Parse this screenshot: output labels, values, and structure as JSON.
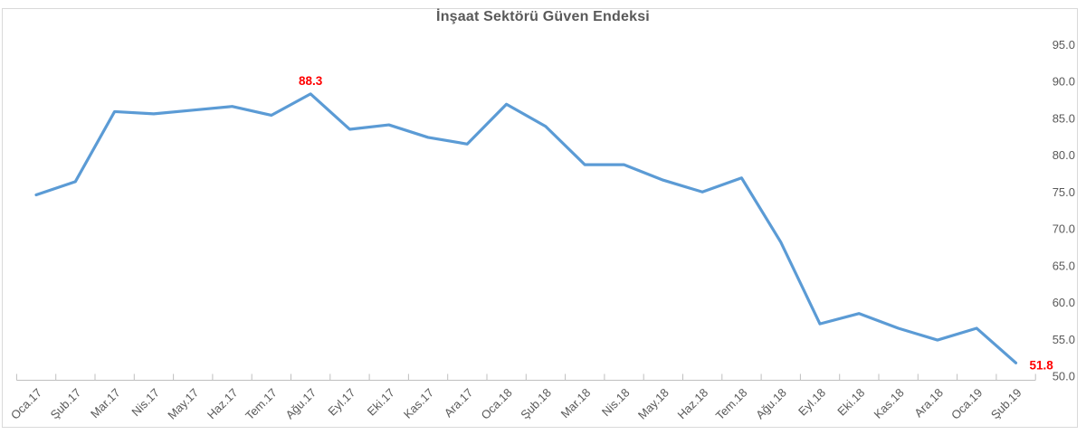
{
  "title": "İnşaat Sektörü Güven Endeksi",
  "colors": {
    "line": "#5B9BD5",
    "data_label": "#FF0000",
    "axis_text": "#595959",
    "axis_line": "#BFBFBF",
    "chart_border": "#D9D9D9",
    "title_text": "#595959"
  },
  "chart_data": {
    "type": "line",
    "title": "İnşaat Sektörü Güven Endeksi",
    "categories": [
      "Oca.17",
      "Şub.17",
      "Mar.17",
      "Nis.17",
      "May.17",
      "Haz.17",
      "Tem.17",
      "Ağu.17",
      "Eyl.17",
      "Eki.17",
      "Kas.17",
      "Ara.17",
      "Oca.18",
      "Şub.18",
      "Mar.18",
      "Nis.18",
      "May.18",
      "Haz.18",
      "Tem.18",
      "Ağu.18",
      "Eyl.18",
      "Eki.18",
      "Kas.18",
      "Ara.18",
      "Oca.19",
      "Şub.19"
    ],
    "series": [
      {
        "name": "İnşaat Sektörü Güven Endeksi",
        "values": [
          74.6,
          76.4,
          85.9,
          85.6,
          86.1,
          86.6,
          85.4,
          88.3,
          83.5,
          84.1,
          82.4,
          81.5,
          86.9,
          83.9,
          78.7,
          78.7,
          76.6,
          75.0,
          76.9,
          68.2,
          57.1,
          58.5,
          56.5,
          54.9,
          56.5,
          51.8
        ]
      }
    ],
    "xlabel": "",
    "ylabel": "",
    "ylim": [
      50,
      95
    ],
    "ytick_step": 5,
    "ytick_labels": [
      "95.0",
      "90.0",
      "85.0",
      "80.0",
      "75.0",
      "70.0",
      "65.0",
      "60.0",
      "55.0",
      "50.0"
    ],
    "y_axis_position": "right",
    "x_label_rotation_deg": 45,
    "grid": false,
    "legend_position": "none",
    "annotations": [
      {
        "index": 7,
        "text": "88.3",
        "placement": "above"
      },
      {
        "index": 25,
        "text": "51.8",
        "placement": "right"
      }
    ]
  }
}
